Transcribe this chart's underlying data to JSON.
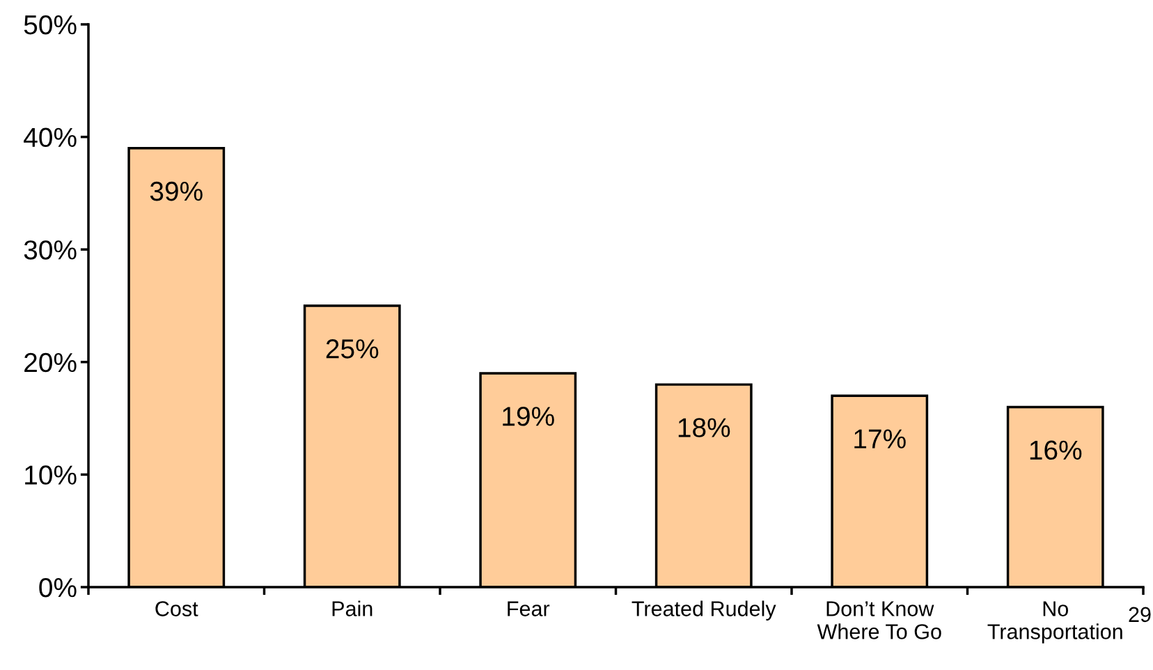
{
  "chart_data": {
    "type": "bar",
    "categories": [
      "Cost",
      "Pain",
      "Fear",
      "Treated Rudely",
      "Don’t Know\nWhere To Go",
      "No\nTransportation"
    ],
    "values": [
      39,
      25,
      19,
      18,
      17,
      16
    ],
    "value_labels": [
      "39%",
      "25%",
      "19%",
      "18%",
      "17%",
      "16%"
    ],
    "color": "#ffcc99",
    "ylim": [
      0,
      50
    ],
    "yticks": [
      {
        "value": 0,
        "label": "0%"
      },
      {
        "value": 10,
        "label": "10%"
      },
      {
        "value": 20,
        "label": "20%"
      },
      {
        "value": 30,
        "label": "30%"
      },
      {
        "value": 40,
        "label": "40%"
      },
      {
        "value": 50,
        "label": "50%"
      }
    ],
    "grid": false,
    "legend": false,
    "annotations": [
      "29"
    ]
  }
}
